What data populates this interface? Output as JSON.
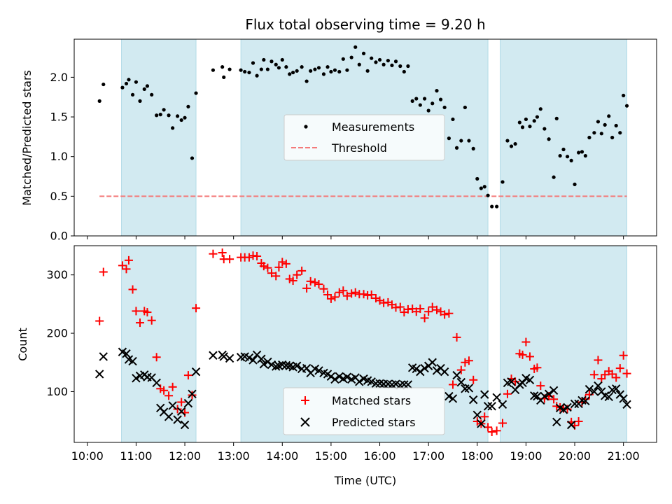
{
  "chart_data": [
    {
      "type": "scatter",
      "title": "Flux total observing time = 9.20 h",
      "ylabel": "Matched/Predicted stars",
      "xlabel": "",
      "xlim": [
        9.73,
        21.68
      ],
      "ylim": [
        0,
        2.48
      ],
      "yticks": [
        0,
        0.5,
        1.0,
        1.5,
        2.0
      ],
      "ytick_labels": [
        "0.0",
        "0.5",
        "1.0",
        "1.5",
        "2.0"
      ],
      "legend_position": "center",
      "legend": [
        "Measurements",
        "Threshold"
      ],
      "shaded_intervals": [
        [
          10.7,
          12.23
        ],
        [
          13.15,
          18.22
        ],
        [
          18.47,
          21.07
        ]
      ],
      "threshold": {
        "name": "Threshold",
        "value": 0.5,
        "x_range": [
          10.25,
          21.07
        ],
        "color": "#f47a7a"
      },
      "series": [
        {
          "name": "Measurements",
          "color": "#000000",
          "x": [
            10.25,
            10.33,
            10.72,
            10.8,
            10.85,
            10.93,
            11.0,
            11.08,
            11.17,
            11.23,
            11.32,
            11.42,
            11.5,
            11.57,
            11.67,
            11.75,
            11.85,
            11.93,
            12.0,
            12.07,
            12.15,
            12.23,
            12.58,
            12.77,
            12.8,
            12.92,
            13.15,
            13.23,
            13.32,
            13.4,
            13.48,
            13.57,
            13.62,
            13.7,
            13.78,
            13.87,
            13.93,
            14.0,
            14.08,
            14.15,
            14.22,
            14.3,
            14.4,
            14.5,
            14.58,
            14.67,
            14.75,
            14.85,
            14.93,
            15.0,
            15.08,
            15.17,
            15.25,
            15.33,
            15.42,
            15.5,
            15.58,
            15.67,
            15.75,
            15.83,
            15.92,
            16.0,
            16.08,
            16.17,
            16.25,
            16.33,
            16.42,
            16.5,
            16.58,
            16.67,
            16.75,
            16.83,
            16.92,
            17.0,
            17.08,
            17.17,
            17.25,
            17.33,
            17.42,
            17.5,
            17.58,
            17.67,
            17.75,
            17.83,
            17.92,
            18.0,
            18.08,
            18.15,
            18.22,
            18.3,
            18.4,
            18.52,
            18.62,
            18.7,
            18.78,
            18.87,
            18.93,
            19.0,
            19.08,
            19.17,
            19.23,
            19.3,
            19.38,
            19.47,
            19.57,
            19.63,
            19.7,
            19.77,
            19.85,
            19.93,
            20.0,
            20.08,
            20.15,
            20.22,
            20.3,
            20.4,
            20.48,
            20.55,
            20.62,
            20.7,
            20.77,
            20.85,
            20.93,
            21.0,
            21.07
          ],
          "y": [
            1.7,
            1.91,
            1.87,
            1.92,
            1.97,
            1.78,
            1.94,
            1.7,
            1.85,
            1.89,
            1.78,
            1.52,
            1.53,
            1.59,
            1.52,
            1.36,
            1.51,
            1.46,
            1.49,
            1.63,
            0.98,
            1.8,
            2.09,
            2.13,
            2.0,
            2.1,
            2.09,
            2.07,
            2.06,
            2.18,
            2.02,
            2.1,
            2.22,
            2.1,
            2.2,
            2.16,
            2.12,
            2.22,
            2.13,
            2.04,
            2.06,
            2.08,
            2.13,
            1.95,
            2.08,
            2.1,
            2.12,
            2.04,
            2.13,
            2.07,
            2.09,
            2.07,
            2.23,
            2.09,
            2.25,
            2.38,
            2.16,
            2.3,
            2.08,
            2.24,
            2.19,
            2.22,
            2.16,
            2.21,
            2.15,
            2.2,
            2.14,
            2.07,
            2.14,
            1.7,
            1.73,
            1.65,
            1.73,
            1.58,
            1.67,
            1.83,
            1.72,
            1.62,
            1.23,
            1.47,
            1.11,
            1.2,
            1.62,
            1.2,
            1.1,
            0.72,
            0.6,
            0.62,
            0.51,
            0.37,
            0.37,
            0.68,
            1.2,
            1.13,
            1.16,
            1.43,
            1.37,
            1.47,
            1.38,
            1.45,
            1.5,
            1.6,
            1.35,
            1.22,
            0.74,
            1.48,
            1.01,
            1.09,
            1.0,
            0.95,
            0.65,
            1.05,
            1.06,
            1.01,
            1.24,
            1.3,
            1.44,
            1.29,
            1.4,
            1.51,
            1.24,
            1.39,
            1.3,
            1.77,
            1.64
          ]
        }
      ]
    },
    {
      "type": "scatter",
      "title": "",
      "xlabel": "Time (UTC)",
      "ylabel": "Count",
      "xlim": [
        9.73,
        21.68
      ],
      "ylim": [
        13,
        350
      ],
      "yticks": [
        100,
        200,
        300
      ],
      "ytick_labels": [
        "100",
        "200",
        "300"
      ],
      "xticks": [
        10,
        11,
        12,
        13,
        14,
        15,
        16,
        17,
        18,
        19,
        20,
        21
      ],
      "xtick_labels": [
        "10:00",
        "11:00",
        "12:00",
        "13:00",
        "14:00",
        "15:00",
        "16:00",
        "17:00",
        "18:00",
        "19:00",
        "20:00",
        "21:00"
      ],
      "legend_position": "bottom-center",
      "legend": [
        "Matched stars",
        "Predicted stars"
      ],
      "shaded_intervals": [
        [
          10.7,
          12.23
        ],
        [
          13.15,
          18.22
        ],
        [
          18.47,
          21.07
        ]
      ],
      "series": [
        {
          "name": "Matched stars",
          "marker": "plus",
          "color": "#ff0000",
          "x": [
            10.25,
            10.33,
            10.72,
            10.8,
            10.85,
            10.93,
            11.0,
            11.08,
            11.17,
            11.23,
            11.32,
            11.42,
            11.5,
            11.57,
            11.67,
            11.75,
            11.85,
            11.93,
            12.0,
            12.07,
            12.15,
            12.23,
            12.58,
            12.77,
            12.8,
            12.92,
            13.15,
            13.23,
            13.32,
            13.4,
            13.48,
            13.57,
            13.62,
            13.7,
            13.78,
            13.87,
            13.93,
            14.0,
            14.08,
            14.15,
            14.22,
            14.3,
            14.4,
            14.5,
            14.58,
            14.67,
            14.75,
            14.85,
            14.93,
            15.0,
            15.08,
            15.17,
            15.25,
            15.33,
            15.42,
            15.5,
            15.58,
            15.67,
            15.75,
            15.83,
            15.92,
            16.0,
            16.08,
            16.17,
            16.25,
            16.33,
            16.42,
            16.5,
            16.58,
            16.67,
            16.75,
            16.83,
            16.92,
            17.0,
            17.08,
            17.17,
            17.25,
            17.33,
            17.42,
            17.5,
            17.58,
            17.67,
            17.75,
            17.83,
            17.92,
            18.0,
            18.08,
            18.15,
            18.22,
            18.3,
            18.4,
            18.52,
            18.62,
            18.7,
            18.78,
            18.87,
            18.93,
            19.0,
            19.08,
            19.17,
            19.23,
            19.3,
            19.38,
            19.47,
            19.57,
            19.63,
            19.7,
            19.77,
            19.85,
            19.93,
            20.0,
            20.08,
            20.15,
            20.22,
            20.3,
            20.4,
            20.48,
            20.55,
            20.62,
            20.7,
            20.77,
            20.85,
            20.93,
            21.0,
            21.07
          ],
          "y": [
            221,
            305,
            316,
            310,
            325,
            275,
            238,
            218,
            238,
            236,
            222,
            159,
            105,
            102,
            93,
            108,
            70,
            82,
            64,
            128,
            94,
            243,
            336,
            338,
            327,
            327,
            330,
            330,
            330,
            333,
            332,
            320,
            315,
            312,
            303,
            298,
            313,
            322,
            319,
            293,
            290,
            300,
            307,
            277,
            289,
            287,
            284,
            276,
            266,
            259,
            262,
            270,
            273,
            264,
            268,
            270,
            267,
            267,
            265,
            266,
            260,
            256,
            252,
            253,
            249,
            244,
            245,
            236,
            241,
            242,
            237,
            242,
            226,
            237,
            245,
            240,
            237,
            232,
            234,
            112,
            193,
            137,
            150,
            153,
            120,
            49,
            45,
            57,
            39,
            31,
            33,
            46,
            96,
            122,
            117,
            165,
            163,
            185,
            160,
            139,
            141,
            110,
            88,
            92,
            87,
            75,
            73,
            71,
            70,
            48,
            42,
            49,
            82,
            87,
            95,
            129,
            154,
            122,
            129,
            135,
            130,
            124,
            140,
            162,
            131
          ]
        },
        {
          "name": "Predicted stars",
          "marker": "x",
          "color": "#000000",
          "x": [
            10.25,
            10.33,
            10.72,
            10.8,
            10.85,
            10.93,
            11.0,
            11.08,
            11.17,
            11.23,
            11.32,
            11.42,
            11.5,
            11.57,
            11.67,
            11.75,
            11.85,
            11.93,
            12.0,
            12.07,
            12.15,
            12.23,
            12.58,
            12.77,
            12.8,
            12.92,
            13.15,
            13.23,
            13.32,
            13.4,
            13.48,
            13.57,
            13.62,
            13.7,
            13.78,
            13.87,
            13.93,
            14.0,
            14.08,
            14.15,
            14.22,
            14.3,
            14.4,
            14.5,
            14.58,
            14.67,
            14.75,
            14.85,
            14.93,
            15.0,
            15.08,
            15.17,
            15.25,
            15.33,
            15.42,
            15.5,
            15.58,
            15.67,
            15.75,
            15.83,
            15.92,
            16.0,
            16.08,
            16.17,
            16.25,
            16.33,
            16.42,
            16.5,
            16.58,
            16.67,
            16.75,
            16.83,
            16.92,
            17.0,
            17.08,
            17.17,
            17.25,
            17.33,
            17.42,
            17.5,
            17.58,
            17.67,
            17.75,
            17.83,
            17.92,
            18.0,
            18.08,
            18.15,
            18.22,
            18.3,
            18.4,
            18.52,
            18.62,
            18.7,
            18.78,
            18.87,
            18.93,
            19.0,
            19.08,
            19.17,
            19.23,
            19.3,
            19.38,
            19.47,
            19.57,
            19.63,
            19.7,
            19.77,
            19.85,
            19.93,
            20.0,
            20.08,
            20.15,
            20.22,
            20.3,
            20.4,
            20.48,
            20.55,
            20.62,
            20.7,
            20.77,
            20.85,
            20.93,
            21.0,
            21.07
          ],
          "y": [
            130,
            160,
            168,
            165,
            155,
            152,
            123,
            127,
            129,
            125,
            124,
            115,
            72,
            65,
            57,
            76,
            52,
            66,
            43,
            80,
            96,
            134,
            162,
            163,
            160,
            157,
            159,
            160,
            158,
            154,
            163,
            156,
            147,
            151,
            146,
            143,
            144,
            146,
            145,
            144,
            142,
            144,
            139,
            140,
            132,
            139,
            136,
            132,
            130,
            126,
            121,
            126,
            122,
            125,
            121,
            124,
            117,
            122,
            119,
            117,
            114,
            114,
            113,
            113,
            112,
            113,
            111,
            112,
            112,
            141,
            139,
            134,
            140,
            144,
            150,
            136,
            140,
            134,
            92,
            88,
            128,
            116,
            105,
            106,
            86,
            60,
            45,
            95,
            75,
            75,
            90,
            78,
            115,
            117,
            103,
            112,
            115,
            123,
            120,
            93,
            92,
            85,
            92,
            96,
            102,
            48,
            72,
            69,
            73,
            43,
            79,
            79,
            85,
            84,
            104,
            100,
            110,
            100,
            93,
            91,
            103,
            105,
            95,
            88,
            78
          ]
        }
      ]
    }
  ]
}
